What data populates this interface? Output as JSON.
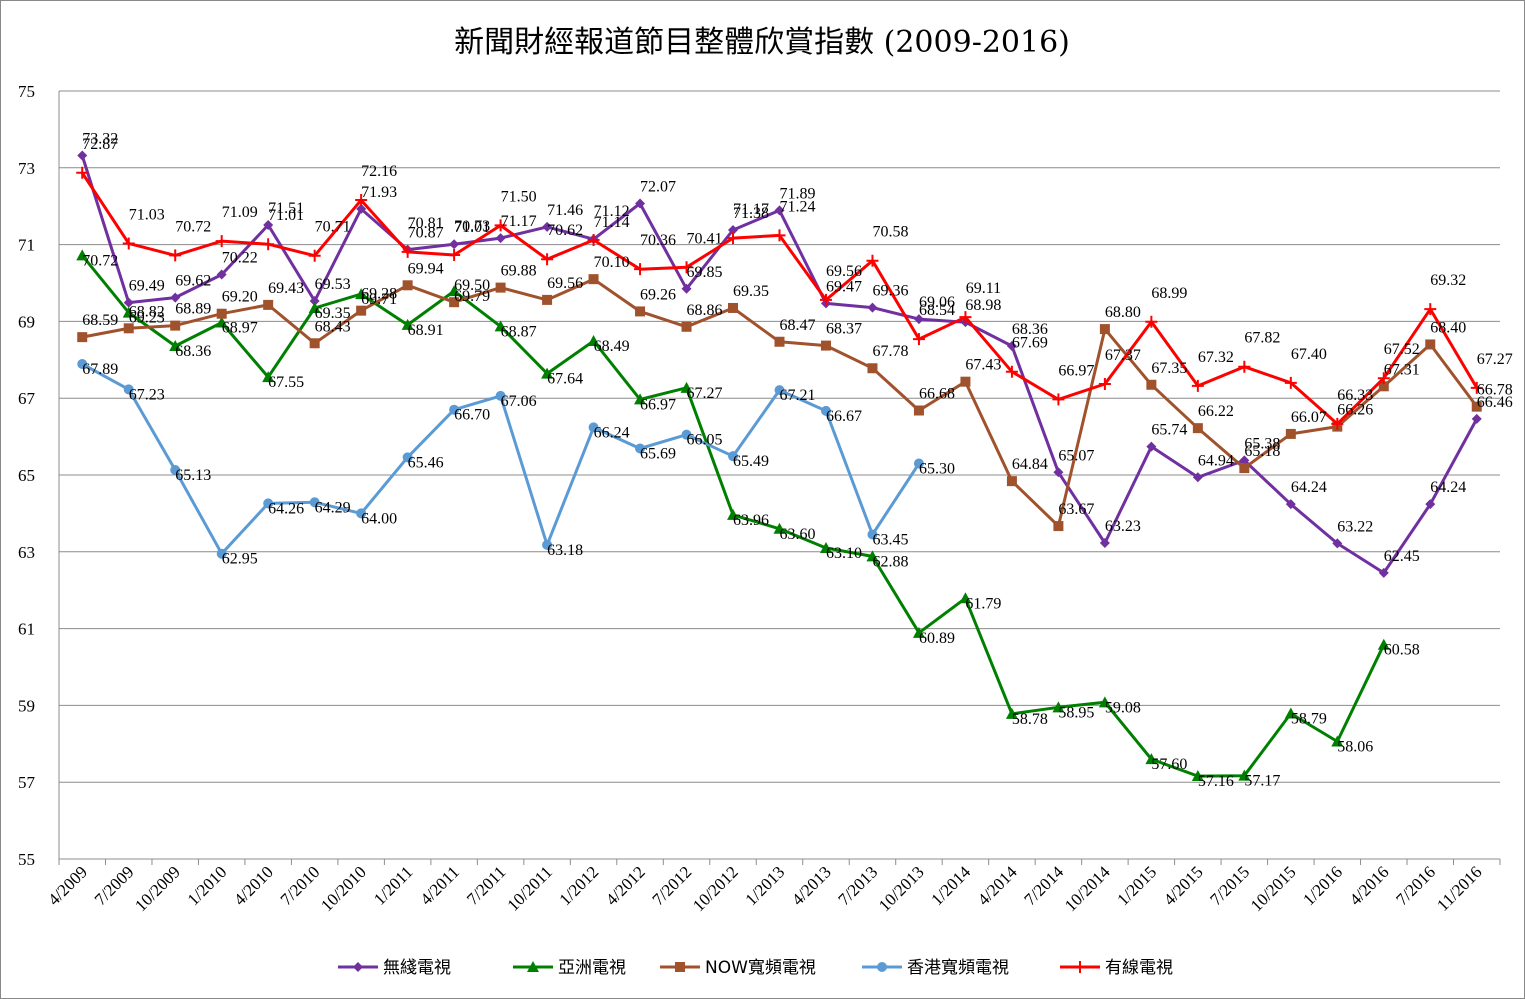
{
  "chart_data": {
    "type": "line",
    "title": "新聞財經報道節目整體欣賞指數 (2009-2016)",
    "xlabel": "",
    "ylabel": "",
    "ylim": [
      55,
      75
    ],
    "yticks": [
      55,
      57,
      59,
      61,
      63,
      65,
      67,
      69,
      71,
      73,
      75
    ],
    "grid": true,
    "legend_position": "bottom",
    "categories": [
      "4/2009",
      "7/2009",
      "10/2009",
      "1/2010",
      "4/2010",
      "7/2010",
      "10/2010",
      "1/2011",
      "4/2011",
      "7/2011",
      "10/2011",
      "1/2012",
      "4/2012",
      "7/2012",
      "10/2012",
      "1/2013",
      "4/2013",
      "7/2013",
      "10/2013",
      "1/2014",
      "4/2014",
      "7/2014",
      "10/2014",
      "1/2015",
      "4/2015",
      "7/2015",
      "10/2015",
      "1/2016",
      "4/2016",
      "7/2016",
      "11/2016"
    ],
    "series": [
      {
        "name": "無綫電視",
        "color": "#7030A0",
        "marker": "diamond",
        "values": [
          73.32,
          69.49,
          69.62,
          70.22,
          71.51,
          69.53,
          71.93,
          70.87,
          71.01,
          71.17,
          71.46,
          71.14,
          72.07,
          69.85,
          71.38,
          71.89,
          69.47,
          69.36,
          69.06,
          68.98,
          68.36,
          65.07,
          63.23,
          65.74,
          64.94,
          65.38,
          64.24,
          63.22,
          62.45,
          64.24,
          66.46
        ]
      },
      {
        "name": "亞洲電視",
        "color": "#008000",
        "marker": "triangle",
        "values": [
          70.72,
          69.23,
          68.36,
          68.97,
          67.55,
          69.35,
          69.71,
          68.91,
          69.79,
          68.87,
          67.64,
          68.49,
          66.97,
          67.27,
          63.96,
          63.6,
          63.1,
          62.88,
          60.89,
          61.79,
          58.78,
          58.95,
          59.08,
          57.6,
          57.16,
          57.17,
          58.79,
          58.06,
          60.58,
          null,
          null
        ]
      },
      {
        "name": "NOW寬頻電視",
        "color": "#A0522D",
        "marker": "square",
        "values": [
          68.59,
          68.82,
          68.89,
          69.2,
          69.43,
          68.43,
          69.28,
          69.94,
          69.5,
          69.88,
          69.56,
          70.1,
          69.26,
          68.86,
          69.35,
          68.47,
          68.37,
          67.78,
          66.68,
          67.43,
          64.84,
          63.67,
          68.8,
          67.35,
          66.22,
          65.18,
          66.07,
          66.26,
          67.31,
          68.4,
          66.78
        ]
      },
      {
        "name": "香港寬頻電視",
        "color": "#5B9BD5",
        "marker": "circle",
        "values": [
          67.89,
          67.23,
          65.13,
          62.95,
          64.26,
          64.29,
          64.0,
          65.46,
          66.7,
          67.06,
          63.18,
          66.24,
          65.69,
          66.05,
          65.49,
          67.21,
          66.67,
          63.45,
          65.3,
          null,
          null,
          null,
          null,
          null,
          null,
          null,
          null,
          null,
          null,
          null,
          null
        ]
      },
      {
        "name": "有線電視",
        "color": "#FF0000",
        "marker": "plus",
        "values": [
          72.87,
          71.03,
          70.72,
          71.09,
          71.01,
          70.71,
          72.16,
          70.81,
          70.73,
          71.5,
          70.62,
          71.12,
          70.36,
          70.41,
          71.17,
          71.24,
          69.56,
          70.58,
          68.54,
          69.11,
          67.69,
          66.97,
          67.37,
          68.99,
          67.32,
          67.82,
          67.4,
          66.33,
          67.52,
          69.32,
          67.27
        ]
      }
    ]
  }
}
